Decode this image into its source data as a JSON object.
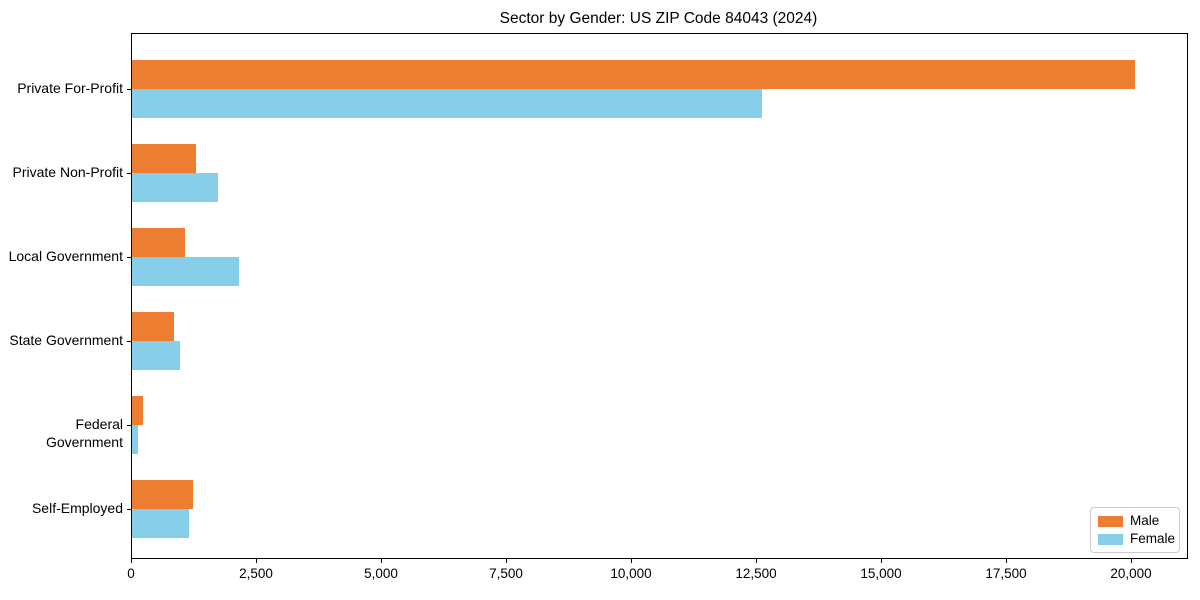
{
  "chart_data": {
    "type": "bar",
    "orientation": "horizontal",
    "title": "Sector by Gender: US ZIP Code 84043 (2024)",
    "categories": [
      "Private For-Profit",
      "Private Non-Profit",
      "Local Government",
      "State Government",
      "Federal Government",
      "Self-Employed"
    ],
    "series": [
      {
        "name": "Male",
        "color": "#ED7D31",
        "values": [
          20050,
          1280,
          1060,
          840,
          220,
          1220
        ]
      },
      {
        "name": "Female",
        "color": "#87CEEB",
        "values": [
          12600,
          1720,
          2140,
          960,
          120,
          1140
        ]
      }
    ],
    "xlabel": "",
    "ylabel": "",
    "xlim": [
      0,
      21100
    ],
    "x_ticks": [
      0,
      2500,
      5000,
      7500,
      10000,
      12500,
      15000,
      17500,
      20000
    ],
    "x_tick_labels": [
      "0",
      "2,500",
      "5,000",
      "7,500",
      "10,000",
      "12,500",
      "15,000",
      "17,500",
      "20,000"
    ],
    "grid": false,
    "legend_position": "lower right",
    "plot_border_color": "#000000",
    "background_color": "#ffffff"
  }
}
